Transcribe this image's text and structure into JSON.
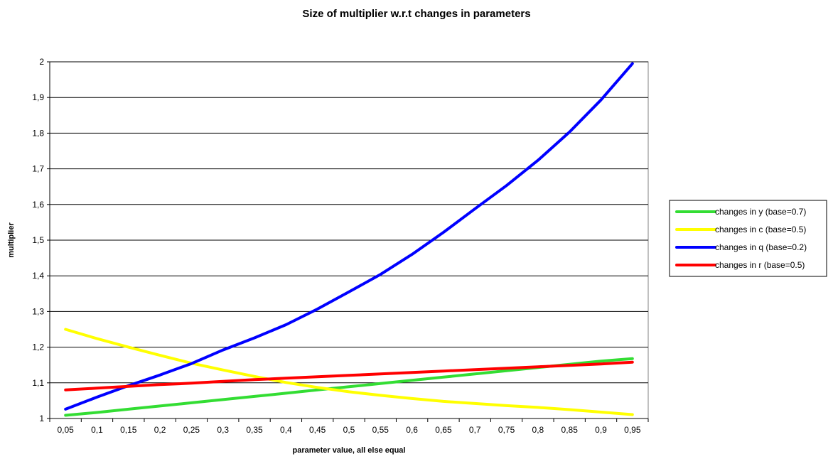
{
  "chart_data": {
    "type": "line",
    "title": "Size of multiplier w.r.t changes in parameters",
    "xlabel": "parameter value, all else equal",
    "ylabel": "multiplier",
    "categories": [
      "0,05",
      "0,1",
      "0,15",
      "0,2",
      "0,25",
      "0,3",
      "0,35",
      "0,4",
      "0,45",
      "0,5",
      "0,55",
      "0,6",
      "0,65",
      "0,7",
      "0,75",
      "0,8",
      "0,85",
      "0,9",
      "0,95"
    ],
    "x": [
      0.05,
      0.1,
      0.15,
      0.2,
      0.25,
      0.3,
      0.35,
      0.4,
      0.45,
      0.5,
      0.55,
      0.6,
      0.65,
      0.7,
      0.75,
      0.8,
      0.85,
      0.9,
      0.95
    ],
    "yticks": [
      "1",
      "1,1",
      "1,2",
      "1,3",
      "1,4",
      "1,5",
      "1,6",
      "1,7",
      "1,8",
      "1,9",
      "2"
    ],
    "ylim": [
      1,
      2
    ],
    "grid": true,
    "legend_position": "right",
    "series": [
      {
        "name": "changes in y (base=0.7)",
        "color": "#33dd33",
        "values": [
          1.009,
          1.017,
          1.026,
          1.035,
          1.044,
          1.053,
          1.062,
          1.071,
          1.08,
          1.089,
          1.098,
          1.107,
          1.116,
          1.125,
          1.134,
          1.143,
          1.152,
          1.161,
          1.168
        ]
      },
      {
        "name": "changes in c (base=0.5)",
        "color": "#ffff00",
        "values": [
          1.25,
          1.224,
          1.2,
          1.177,
          1.155,
          1.136,
          1.118,
          1.101,
          1.087,
          1.075,
          1.065,
          1.056,
          1.048,
          1.042,
          1.036,
          1.031,
          1.025,
          1.018,
          1.011
        ]
      },
      {
        "name": "changes in q (base=0.2)",
        "color": "#0000ff",
        "values": [
          1.026,
          1.06,
          1.092,
          1.122,
          1.154,
          1.192,
          1.226,
          1.263,
          1.307,
          1.355,
          1.404,
          1.46,
          1.522,
          1.588,
          1.653,
          1.724,
          1.803,
          1.893,
          1.995
        ]
      },
      {
        "name": "changes in r (base=0.5)",
        "color": "#ff0000",
        "values": [
          1.08,
          1.085,
          1.09,
          1.095,
          1.099,
          1.104,
          1.109,
          1.113,
          1.117,
          1.121,
          1.125,
          1.129,
          1.133,
          1.137,
          1.141,
          1.145,
          1.149,
          1.153,
          1.158
        ]
      }
    ]
  }
}
